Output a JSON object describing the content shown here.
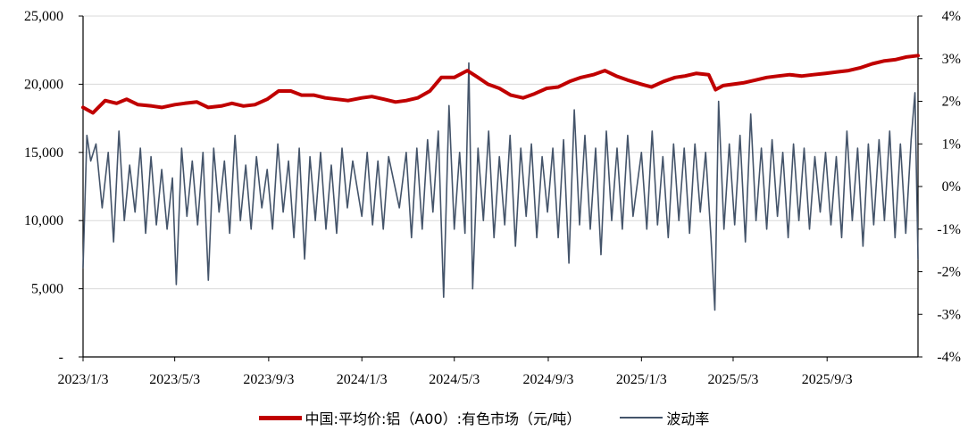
{
  "chart_data": {
    "type": "line",
    "title": "",
    "xlabel": "",
    "ylabel": "",
    "x_ticks": [
      "2023/1/3",
      "2023/5/3",
      "2023/9/3",
      "2024/1/3",
      "2024/5/3",
      "2024/9/3",
      "2025/1/3",
      "2025/5/3",
      "2025/9/3"
    ],
    "x_range": [
      "2023/1/3",
      "2025/12/31"
    ],
    "y_left": {
      "ticks": [
        "-",
        "5,000",
        "10,000",
        "15,000",
        "20,000",
        "25,000"
      ],
      "ylim": [
        0,
        25000
      ]
    },
    "y_right": {
      "ticks": [
        "-4%",
        "-3%",
        "-2%",
        "-1%",
        "0%",
        "1%",
        "2%",
        "3%",
        "4%"
      ],
      "ylim": [
        -4,
        4
      ],
      "unit": "%"
    },
    "grid": "horizontal",
    "legend_position": "bottom",
    "series": [
      {
        "name": "中国:平均价:铝（A00）:有色市场（元/吨）",
        "axis": "left",
        "color": "#c00000",
        "points": [
          [
            "2023/1/3",
            18300
          ],
          [
            "2023/1/16",
            17900
          ],
          [
            "2023/2/1",
            18800
          ],
          [
            "2023/2/16",
            18600
          ],
          [
            "2023/3/1",
            18900
          ],
          [
            "2023/3/16",
            18500
          ],
          [
            "2023/4/3",
            18400
          ],
          [
            "2023/4/16",
            18300
          ],
          [
            "2023/5/3",
            18500
          ],
          [
            "2023/5/16",
            18600
          ],
          [
            "2023/6/1",
            18700
          ],
          [
            "2023/6/16",
            18300
          ],
          [
            "2023/7/3",
            18400
          ],
          [
            "2023/7/17",
            18600
          ],
          [
            "2023/8/1",
            18400
          ],
          [
            "2023/8/16",
            18500
          ],
          [
            "2023/9/1",
            18900
          ],
          [
            "2023/9/16",
            19500
          ],
          [
            "2023/10/2",
            19500
          ],
          [
            "2023/10/16",
            19200
          ],
          [
            "2023/11/1",
            19200
          ],
          [
            "2023/11/16",
            19000
          ],
          [
            "2023/12/1",
            18900
          ],
          [
            "2023/12/16",
            18800
          ],
          [
            "2024/1/3",
            19000
          ],
          [
            "2024/1/16",
            19100
          ],
          [
            "2024/2/1",
            18900
          ],
          [
            "2024/2/16",
            18700
          ],
          [
            "2024/3/1",
            18800
          ],
          [
            "2024/3/16",
            19000
          ],
          [
            "2024/4/1",
            19500
          ],
          [
            "2024/4/16",
            20500
          ],
          [
            "2024/5/3",
            20500
          ],
          [
            "2024/5/20",
            21000
          ],
          [
            "2024/6/3",
            20500
          ],
          [
            "2024/6/16",
            20000
          ],
          [
            "2024/7/1",
            19700
          ],
          [
            "2024/7/16",
            19200
          ],
          [
            "2024/8/1",
            19000
          ],
          [
            "2024/8/16",
            19300
          ],
          [
            "2024/9/1",
            19700
          ],
          [
            "2024/9/16",
            19800
          ],
          [
            "2024/10/1",
            20200
          ],
          [
            "2024/10/16",
            20500
          ],
          [
            "2024/11/1",
            20700
          ],
          [
            "2024/11/16",
            21000
          ],
          [
            "2024/12/1",
            20600
          ],
          [
            "2024/12/16",
            20300
          ],
          [
            "2025/1/3",
            20000
          ],
          [
            "2025/1/16",
            19800
          ],
          [
            "2025/2/1",
            20200
          ],
          [
            "2025/2/16",
            20500
          ],
          [
            "2025/3/1",
            20600
          ],
          [
            "2025/3/16",
            20800
          ],
          [
            "2025/4/1",
            20700
          ],
          [
            "2025/4/10",
            19600
          ],
          [
            "2025/4/20",
            19900
          ],
          [
            "2025/5/3",
            20000
          ],
          [
            "2025/5/16",
            20100
          ],
          [
            "2025/6/1",
            20300
          ],
          [
            "2025/6/16",
            20500
          ],
          [
            "2025/7/1",
            20600
          ],
          [
            "2025/7/16",
            20700
          ],
          [
            "2025/8/1",
            20600
          ],
          [
            "2025/8/16",
            20700
          ],
          [
            "2025/9/1",
            20800
          ],
          [
            "2025/9/16",
            20900
          ],
          [
            "2025/10/1",
            21000
          ],
          [
            "2025/10/16",
            21200
          ],
          [
            "2025/11/1",
            21500
          ],
          [
            "2025/11/16",
            21700
          ],
          [
            "2025/12/1",
            21800
          ],
          [
            "2025/12/16",
            22000
          ],
          [
            "2025/12/31",
            22100
          ]
        ]
      },
      {
        "name": "波动率",
        "axis": "right",
        "color": "#44546a",
        "points": [
          [
            "2023/1/3",
            -1.9
          ],
          [
            "2023/1/8",
            1.2
          ],
          [
            "2023/1/13",
            0.6
          ],
          [
            "2023/1/20",
            1.0
          ],
          [
            "2023/1/28",
            -0.5
          ],
          [
            "2023/2/5",
            0.8
          ],
          [
            "2023/2/12",
            -1.3
          ],
          [
            "2023/2/19",
            1.3
          ],
          [
            "2023/2/26",
            -0.8
          ],
          [
            "2023/3/5",
            0.5
          ],
          [
            "2023/3/12",
            -0.6
          ],
          [
            "2023/3/19",
            0.9
          ],
          [
            "2023/3/26",
            -1.1
          ],
          [
            "2023/4/2",
            0.7
          ],
          [
            "2023/4/9",
            -0.9
          ],
          [
            "2023/4/16",
            0.4
          ],
          [
            "2023/4/23",
            -1.0
          ],
          [
            "2023/4/30",
            0.2
          ],
          [
            "2023/5/5",
            -2.3
          ],
          [
            "2023/5/12",
            0.9
          ],
          [
            "2023/5/19",
            -0.7
          ],
          [
            "2023/5/26",
            0.6
          ],
          [
            "2023/6/2",
            -0.9
          ],
          [
            "2023/6/9",
            0.8
          ],
          [
            "2023/6/16",
            -2.2
          ],
          [
            "2023/6/23",
            0.9
          ],
          [
            "2023/6/30",
            -0.6
          ],
          [
            "2023/7/7",
            0.6
          ],
          [
            "2023/7/14",
            -1.1
          ],
          [
            "2023/7/21",
            1.2
          ],
          [
            "2023/7/28",
            -0.8
          ],
          [
            "2023/8/4",
            0.5
          ],
          [
            "2023/8/11",
            -1.0
          ],
          [
            "2023/8/18",
            0.7
          ],
          [
            "2023/8/25",
            -0.5
          ],
          [
            "2023/9/1",
            0.4
          ],
          [
            "2023/9/8",
            -1.0
          ],
          [
            "2023/9/15",
            1.0
          ],
          [
            "2023/9/22",
            -0.6
          ],
          [
            "2023/9/29",
            0.6
          ],
          [
            "2023/10/6",
            -1.2
          ],
          [
            "2023/10/13",
            0.9
          ],
          [
            "2023/10/20",
            -1.7
          ],
          [
            "2023/10/27",
            0.7
          ],
          [
            "2023/11/3",
            -0.8
          ],
          [
            "2023/11/10",
            0.8
          ],
          [
            "2023/11/17",
            -1.0
          ],
          [
            "2023/11/24",
            0.5
          ],
          [
            "2023/12/1",
            -1.1
          ],
          [
            "2023/12/8",
            0.9
          ],
          [
            "2023/12/15",
            -0.5
          ],
          [
            "2023/12/22",
            0.6
          ],
          [
            "2024/1/3",
            -0.7
          ],
          [
            "2024/1/10",
            0.8
          ],
          [
            "2024/1/17",
            -0.9
          ],
          [
            "2024/1/24",
            0.6
          ],
          [
            "2024/1/31",
            -1.0
          ],
          [
            "2024/2/7",
            0.7
          ],
          [
            "2024/2/21",
            -0.5
          ],
          [
            "2024/3/1",
            0.8
          ],
          [
            "2024/3/8",
            -1.2
          ],
          [
            "2024/3/15",
            0.9
          ],
          [
            "2024/3/22",
            -1.0
          ],
          [
            "2024/3/29",
            1.1
          ],
          [
            "2024/4/5",
            -0.6
          ],
          [
            "2024/4/12",
            1.3
          ],
          [
            "2024/4/19",
            -2.6
          ],
          [
            "2024/4/26",
            1.9
          ],
          [
            "2024/5/3",
            -1.0
          ],
          [
            "2024/5/10",
            0.8
          ],
          [
            "2024/5/17",
            -1.1
          ],
          [
            "2024/5/22",
            2.9
          ],
          [
            "2024/5/27",
            -2.4
          ],
          [
            "2024/6/3",
            0.9
          ],
          [
            "2024/6/10",
            -0.8
          ],
          [
            "2024/6/17",
            1.3
          ],
          [
            "2024/6/24",
            -1.2
          ],
          [
            "2024/7/1",
            0.7
          ],
          [
            "2024/7/8",
            -0.9
          ],
          [
            "2024/7/15",
            1.2
          ],
          [
            "2024/7/22",
            -1.4
          ],
          [
            "2024/7/29",
            0.9
          ],
          [
            "2024/8/5",
            -0.7
          ],
          [
            "2024/8/12",
            1.0
          ],
          [
            "2024/8/19",
            -1.2
          ],
          [
            "2024/8/26",
            0.7
          ],
          [
            "2024/9/2",
            -0.6
          ],
          [
            "2024/9/9",
            0.9
          ],
          [
            "2024/9/16",
            -1.2
          ],
          [
            "2024/9/23",
            1.1
          ],
          [
            "2024/9/30",
            -1.8
          ],
          [
            "2024/10/7",
            1.8
          ],
          [
            "2024/10/14",
            -0.9
          ],
          [
            "2024/10/21",
            1.2
          ],
          [
            "2024/10/28",
            -1.0
          ],
          [
            "2024/11/4",
            0.9
          ],
          [
            "2024/11/11",
            -1.6
          ],
          [
            "2024/11/18",
            1.3
          ],
          [
            "2024/11/25",
            -0.8
          ],
          [
            "2024/12/2",
            0.9
          ],
          [
            "2024/12/9",
            -1.0
          ],
          [
            "2024/12/16",
            1.2
          ],
          [
            "2024/12/23",
            -0.7
          ],
          [
            "2025/1/3",
            0.8
          ],
          [
            "2025/1/10",
            -1.0
          ],
          [
            "2025/1/17",
            1.3
          ],
          [
            "2025/1/24",
            -0.9
          ],
          [
            "2025/1/31",
            0.7
          ],
          [
            "2025/2/7",
            -1.2
          ],
          [
            "2025/2/14",
            1.0
          ],
          [
            "2025/2/21",
            -0.8
          ],
          [
            "2025/2/28",
            0.9
          ],
          [
            "2025/3/7",
            -1.1
          ],
          [
            "2025/3/14",
            1.0
          ],
          [
            "2025/3/21",
            -0.6
          ],
          [
            "2025/3/28",
            0.8
          ],
          [
            "2025/4/4",
            -1.2
          ],
          [
            "2025/4/9",
            -2.9
          ],
          [
            "2025/4/14",
            2.0
          ],
          [
            "2025/4/21",
            -1.0
          ],
          [
            "2025/4/28",
            1.0
          ],
          [
            "2025/5/5",
            -0.9
          ],
          [
            "2025/5/12",
            1.2
          ],
          [
            "2025/5/19",
            -1.3
          ],
          [
            "2025/5/26",
            1.7
          ],
          [
            "2025/6/2",
            -0.8
          ],
          [
            "2025/6/9",
            0.9
          ],
          [
            "2025/6/16",
            -1.0
          ],
          [
            "2025/6/23",
            1.1
          ],
          [
            "2025/6/30",
            -0.7
          ],
          [
            "2025/7/7",
            0.8
          ],
          [
            "2025/7/14",
            -1.2
          ],
          [
            "2025/7/21",
            1.0
          ],
          [
            "2025/7/28",
            -0.8
          ],
          [
            "2025/8/4",
            0.9
          ],
          [
            "2025/8/11",
            -1.0
          ],
          [
            "2025/8/18",
            0.7
          ],
          [
            "2025/8/25",
            -0.6
          ],
          [
            "2025/9/1",
            0.8
          ],
          [
            "2025/9/8",
            -0.9
          ],
          [
            "2025/9/15",
            0.7
          ],
          [
            "2025/9/22",
            -1.2
          ],
          [
            "2025/9/29",
            1.3
          ],
          [
            "2025/10/6",
            -0.8
          ],
          [
            "2025/10/13",
            0.9
          ],
          [
            "2025/10/20",
            -1.4
          ],
          [
            "2025/10/27",
            1.0
          ],
          [
            "2025/11/3",
            -0.9
          ],
          [
            "2025/11/10",
            1.1
          ],
          [
            "2025/11/17",
            -0.8
          ],
          [
            "2025/11/24",
            1.3
          ],
          [
            "2025/12/1",
            -1.2
          ],
          [
            "2025/12/8",
            1.0
          ],
          [
            "2025/12/15",
            -1.1
          ],
          [
            "2025/12/22",
            1.1
          ],
          [
            "2025/12/27",
            2.2
          ],
          [
            "2025/12/31",
            -1.7
          ]
        ]
      }
    ]
  }
}
